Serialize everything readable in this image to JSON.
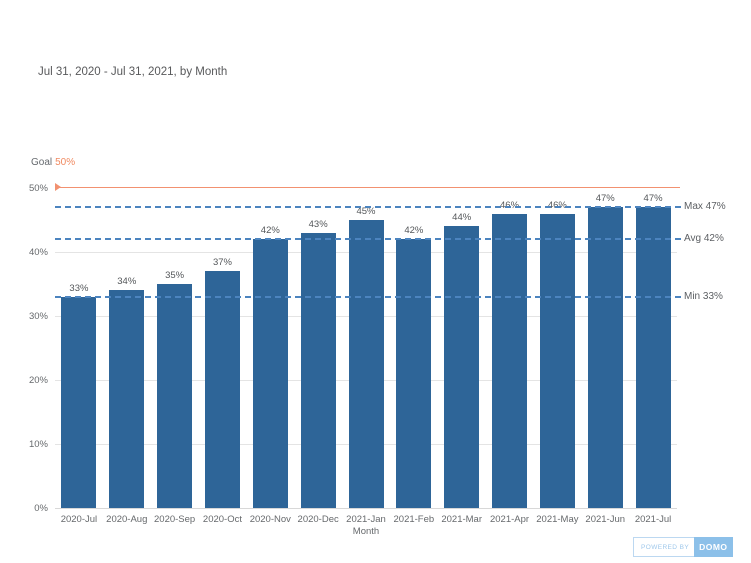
{
  "title": "Jul 31, 2020 - Jul 31, 2021, by Month",
  "goal": {
    "label": "Goal",
    "value": "50%"
  },
  "chart_data": {
    "type": "bar",
    "title": "Jul 31, 2020 - Jul 31, 2021, by Month",
    "categories": [
      "2020-Jul",
      "2020-Aug",
      "2020-Sep",
      "2020-Oct",
      "2020-Nov",
      "2020-Dec",
      "2021-Jan",
      "2021-Feb",
      "2021-Mar",
      "2021-Apr",
      "2021-May",
      "2021-Jun",
      "2021-Jul"
    ],
    "values": [
      33,
      34,
      35,
      37,
      42,
      43,
      45,
      42,
      44,
      46,
      46,
      47,
      47
    ],
    "value_suffix": "%",
    "xlabel": "Month",
    "ylabel": "",
    "ylim": [
      0,
      50
    ],
    "y_ticks": [
      0,
      10,
      20,
      30,
      40,
      50
    ],
    "y_tick_suffix": "%",
    "grid": true,
    "legend_position": "none",
    "goal_value": 50,
    "goal_label": "Goal 50%",
    "annotations": [
      {
        "name": "Max",
        "value": 47,
        "label": "Max 47%"
      },
      {
        "name": "Avg",
        "value": 42,
        "label": "Avg 42%"
      },
      {
        "name": "Min",
        "value": 33,
        "label": "Min 33%"
      }
    ],
    "bar_color": "#2e6598",
    "annotation_line_color": "#4c84bf",
    "goal_line_color": "#f29170",
    "gridline_color": "#e4e4e4",
    "label_color": "#66696c"
  },
  "footer": {
    "powered_by": "POWERED BY",
    "brand": "DOMO"
  }
}
